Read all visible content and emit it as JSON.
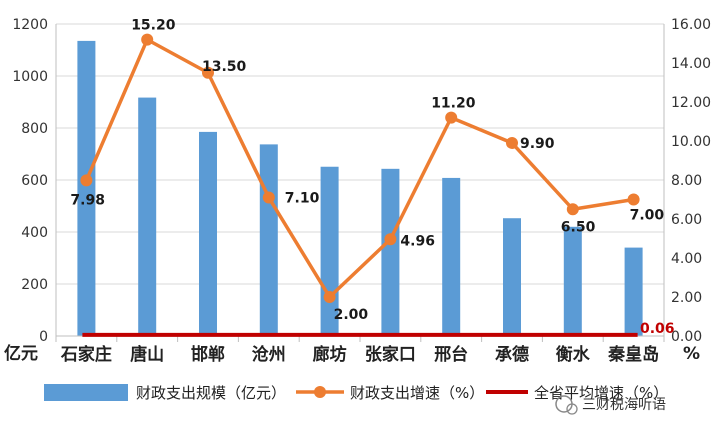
{
  "chart_data": {
    "type": "bar+line",
    "categories": [
      "石家庄",
      "唐山",
      "邯郸",
      "沧州",
      "廊坊",
      "张家口",
      "邢台",
      "承德",
      "衡水",
      "秦皇岛"
    ],
    "series": [
      {
        "name": "财政支出规模（亿元）",
        "type": "bar",
        "axis": "left",
        "values": [
          1135,
          917,
          785,
          737,
          651,
          643,
          608,
          453,
          420,
          340
        ]
      },
      {
        "name": "财政支出增速（%）",
        "type": "line",
        "axis": "right",
        "values": [
          7.98,
          15.2,
          13.5,
          7.1,
          2.0,
          4.96,
          11.2,
          9.9,
          6.5,
          7.0
        ],
        "labels": [
          "7.98",
          "15.20",
          "13.50",
          "7.10",
          "2.00",
          "4.96",
          "11.20",
          "9.90",
          "6.50",
          "7.00"
        ]
      },
      {
        "name": "全省平均增速（%）",
        "type": "line",
        "axis": "right",
        "value": 0.06,
        "label": "0.06"
      }
    ],
    "ylim_left": [
      0,
      1200
    ],
    "yticks_left": [
      "0",
      "200",
      "400",
      "600",
      "800",
      "1000",
      "1200"
    ],
    "ylim_right": [
      0,
      16
    ],
    "yticks_right": [
      "0.00",
      "2.00",
      "4.00",
      "6.00",
      "8.00",
      "10.00",
      "12.00",
      "14.00",
      "16.00"
    ],
    "ylabel_left": "亿元",
    "ylabel_right": "%",
    "legend_position": "bottom",
    "colors": {
      "bar": "#5b9bd5",
      "line": "#ed7d31",
      "avg": "#c00000"
    }
  },
  "watermark": "三财税海听语"
}
